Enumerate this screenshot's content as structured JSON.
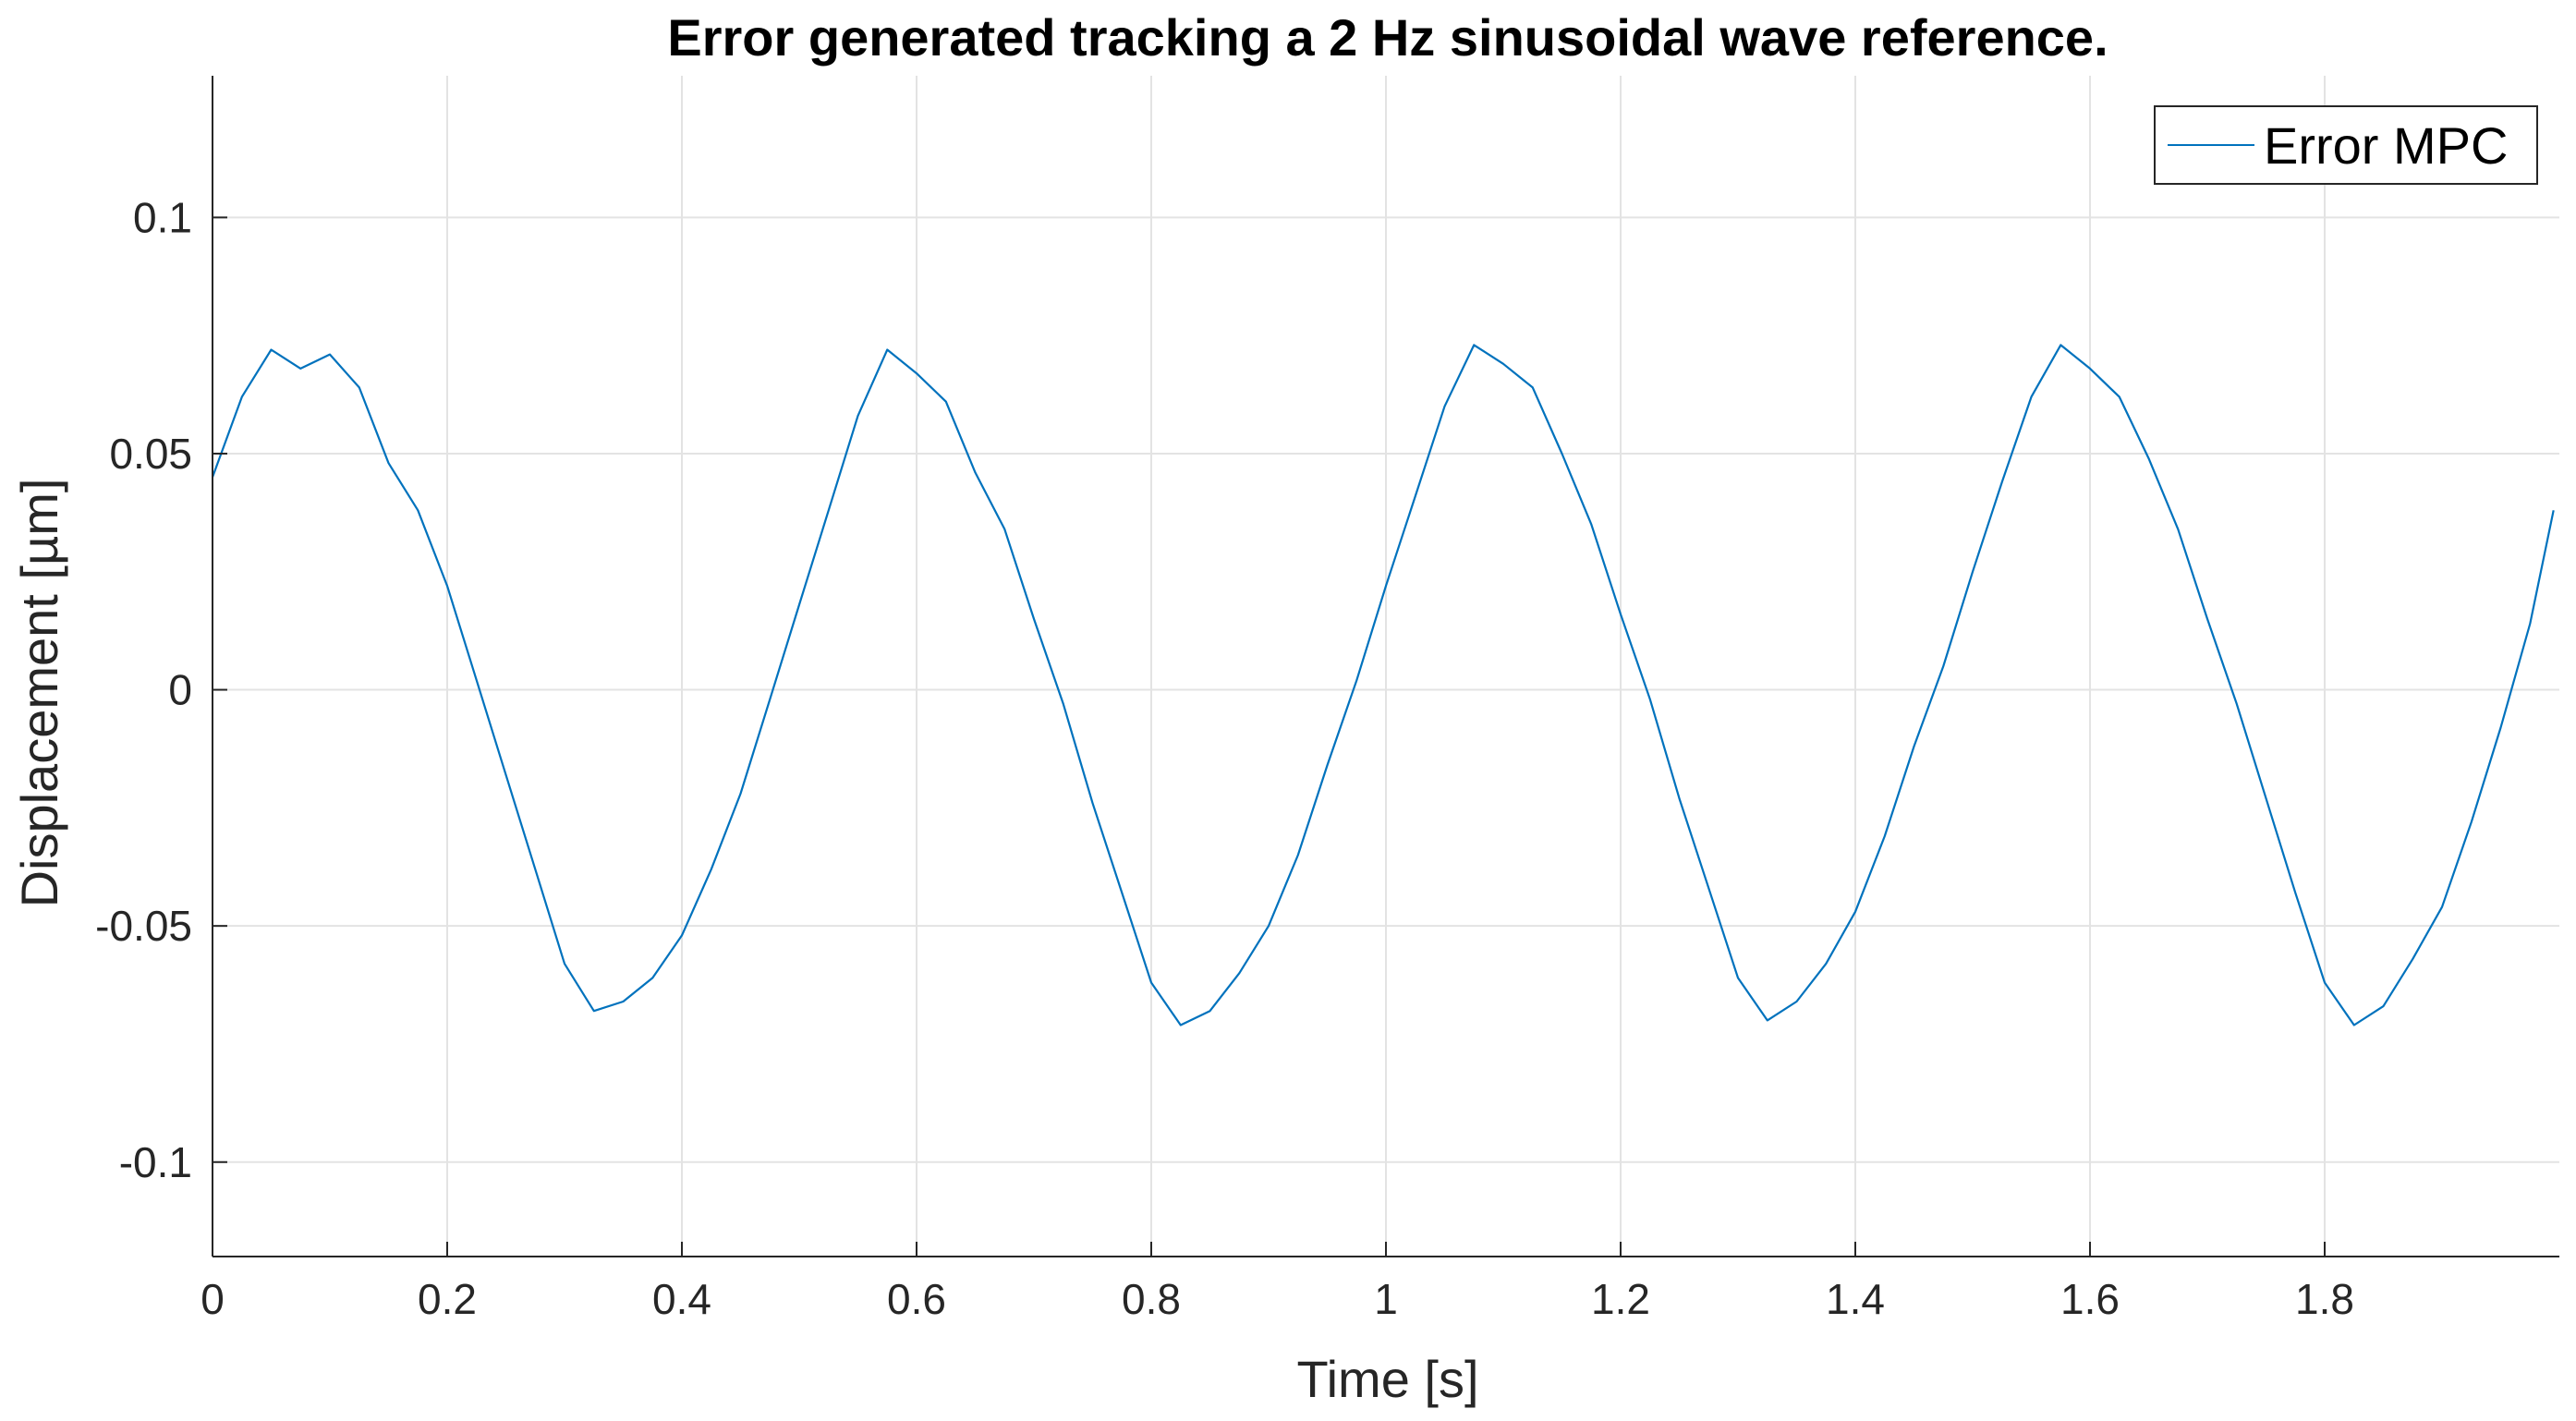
{
  "colors": {
    "series": "#0072BD",
    "grid": "#e3e3e3",
    "axis": "#262626"
  },
  "chart_data": {
    "type": "line",
    "title": "Error generated tracking a 2 Hz sinusoidal wave reference.",
    "xlabel": "Time [s]",
    "ylabel": "Displacement  [µm]",
    "xlim": [
      0,
      2
    ],
    "ylim": [
      -0.12,
      0.13
    ],
    "xticks": [
      0,
      0.2,
      0.4,
      0.6,
      0.8,
      1,
      1.2,
      1.4,
      1.6,
      1.8
    ],
    "xtick_labels": [
      "0",
      "0.2",
      "0.4",
      "0.6",
      "0.8",
      "1",
      "1.2",
      "1.4",
      "1.6",
      "1.8"
    ],
    "yticks": [
      -0.1,
      -0.05,
      0,
      0.05,
      0.1
    ],
    "ytick_labels": [
      "-0.1",
      "-0.05",
      "0",
      "0.05",
      "0.1"
    ],
    "grid": true,
    "legend": {
      "position": "top-right",
      "entries": [
        "Error MPC"
      ]
    },
    "series": [
      {
        "name": "Error MPC",
        "x": [
          0,
          0.025,
          0.05,
          0.075,
          0.1,
          0.125,
          0.15,
          0.175,
          0.2,
          0.225,
          0.25,
          0.275,
          0.3,
          0.325,
          0.35,
          0.375,
          0.4,
          0.425,
          0.45,
          0.475,
          0.5,
          0.525,
          0.55,
          0.575,
          0.6,
          0.625,
          0.65,
          0.675,
          0.7,
          0.725,
          0.75,
          0.775,
          0.8,
          0.825,
          0.85,
          0.875,
          0.9,
          0.925,
          0.95,
          0.975,
          1.0,
          1.025,
          1.05,
          1.075,
          1.1,
          1.125,
          1.15,
          1.175,
          1.2,
          1.225,
          1.25,
          1.275,
          1.3,
          1.325,
          1.35,
          1.375,
          1.4,
          1.425,
          1.45,
          1.475,
          1.5,
          1.525,
          1.55,
          1.575,
          1.6,
          1.625,
          1.65,
          1.675,
          1.7,
          1.725,
          1.75,
          1.775,
          1.8,
          1.825,
          1.85,
          1.875,
          1.9,
          1.925,
          1.95,
          1.975,
          1.995
        ],
        "y": [
          0.045,
          0.062,
          0.072,
          0.068,
          0.071,
          0.064,
          0.048,
          0.038,
          0.022,
          0.002,
          -0.018,
          -0.038,
          -0.058,
          -0.068,
          -0.066,
          -0.061,
          -0.052,
          -0.038,
          -0.022,
          -0.002,
          0.018,
          0.038,
          0.058,
          0.072,
          0.067,
          0.061,
          0.046,
          0.034,
          0.015,
          -0.003,
          -0.024,
          -0.043,
          -0.062,
          -0.071,
          -0.068,
          -0.06,
          -0.05,
          -0.035,
          -0.016,
          0.002,
          0.022,
          0.041,
          0.06,
          0.073,
          0.069,
          0.064,
          0.05,
          0.035,
          0.016,
          -0.002,
          -0.023,
          -0.042,
          -0.061,
          -0.07,
          -0.066,
          -0.058,
          -0.047,
          -0.031,
          -0.012,
          0.005,
          0.025,
          0.044,
          0.062,
          0.073,
          0.068,
          0.062,
          0.049,
          0.034,
          0.015,
          -0.003,
          -0.023,
          -0.043,
          -0.062,
          -0.071,
          -0.067,
          -0.057,
          -0.046,
          -0.028,
          -0.008,
          0.014,
          0.038
        ]
      }
    ]
  }
}
